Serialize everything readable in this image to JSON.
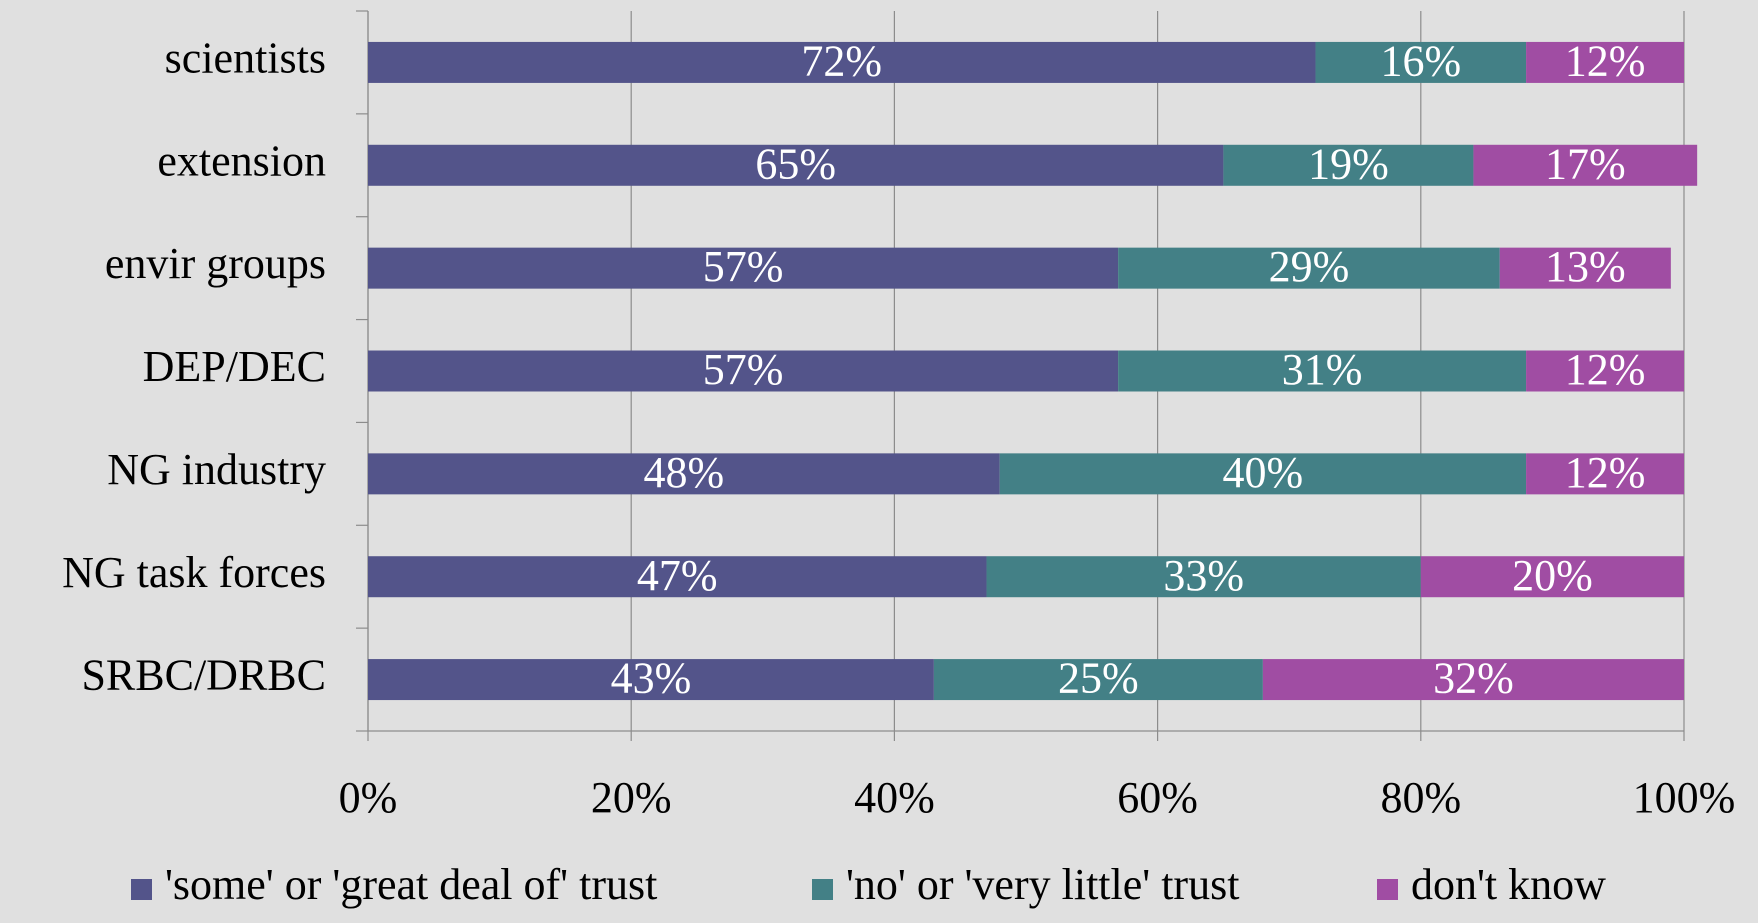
{
  "chart_data": {
    "type": "stacked_bar_horizontal",
    "categories": [
      "scientists",
      "extension",
      "envir groups",
      "DEP/DEC",
      "NG industry",
      "NG task forces",
      "SRBC/DRBC"
    ],
    "series": [
      {
        "name": "'some' or 'great deal of' trust",
        "color": "#53548a",
        "values": [
          72,
          65,
          57,
          57,
          48,
          47,
          43
        ],
        "value_labels": [
          "72%",
          "65%",
          "57%",
          "57%",
          "48%",
          "47%",
          "43%"
        ]
      },
      {
        "name": "'no' or 'very little' trust",
        "color": "#438086",
        "values": [
          16,
          19,
          29,
          31,
          40,
          33,
          25
        ],
        "value_labels": [
          "16%",
          "19%",
          "29%",
          "31%",
          "40%",
          "33%",
          "25%"
        ]
      },
      {
        "name": "don't know",
        "color": "#a04da3",
        "values": [
          12,
          17,
          13,
          12,
          12,
          20,
          32
        ],
        "value_labels": [
          "12%",
          "17%",
          "13%",
          "12%",
          "12%",
          "20%",
          "32%"
        ]
      }
    ],
    "xlim": [
      0,
      100
    ],
    "xticks": [
      {
        "value": 0,
        "label": "0%"
      },
      {
        "value": 20,
        "label": "20%"
      },
      {
        "value": 40,
        "label": "40%"
      },
      {
        "value": 60,
        "label": "60%"
      },
      {
        "value": 80,
        "label": "80%"
      },
      {
        "value": 100,
        "label": "100%"
      }
    ],
    "grid": true,
    "legend": "bottom"
  }
}
